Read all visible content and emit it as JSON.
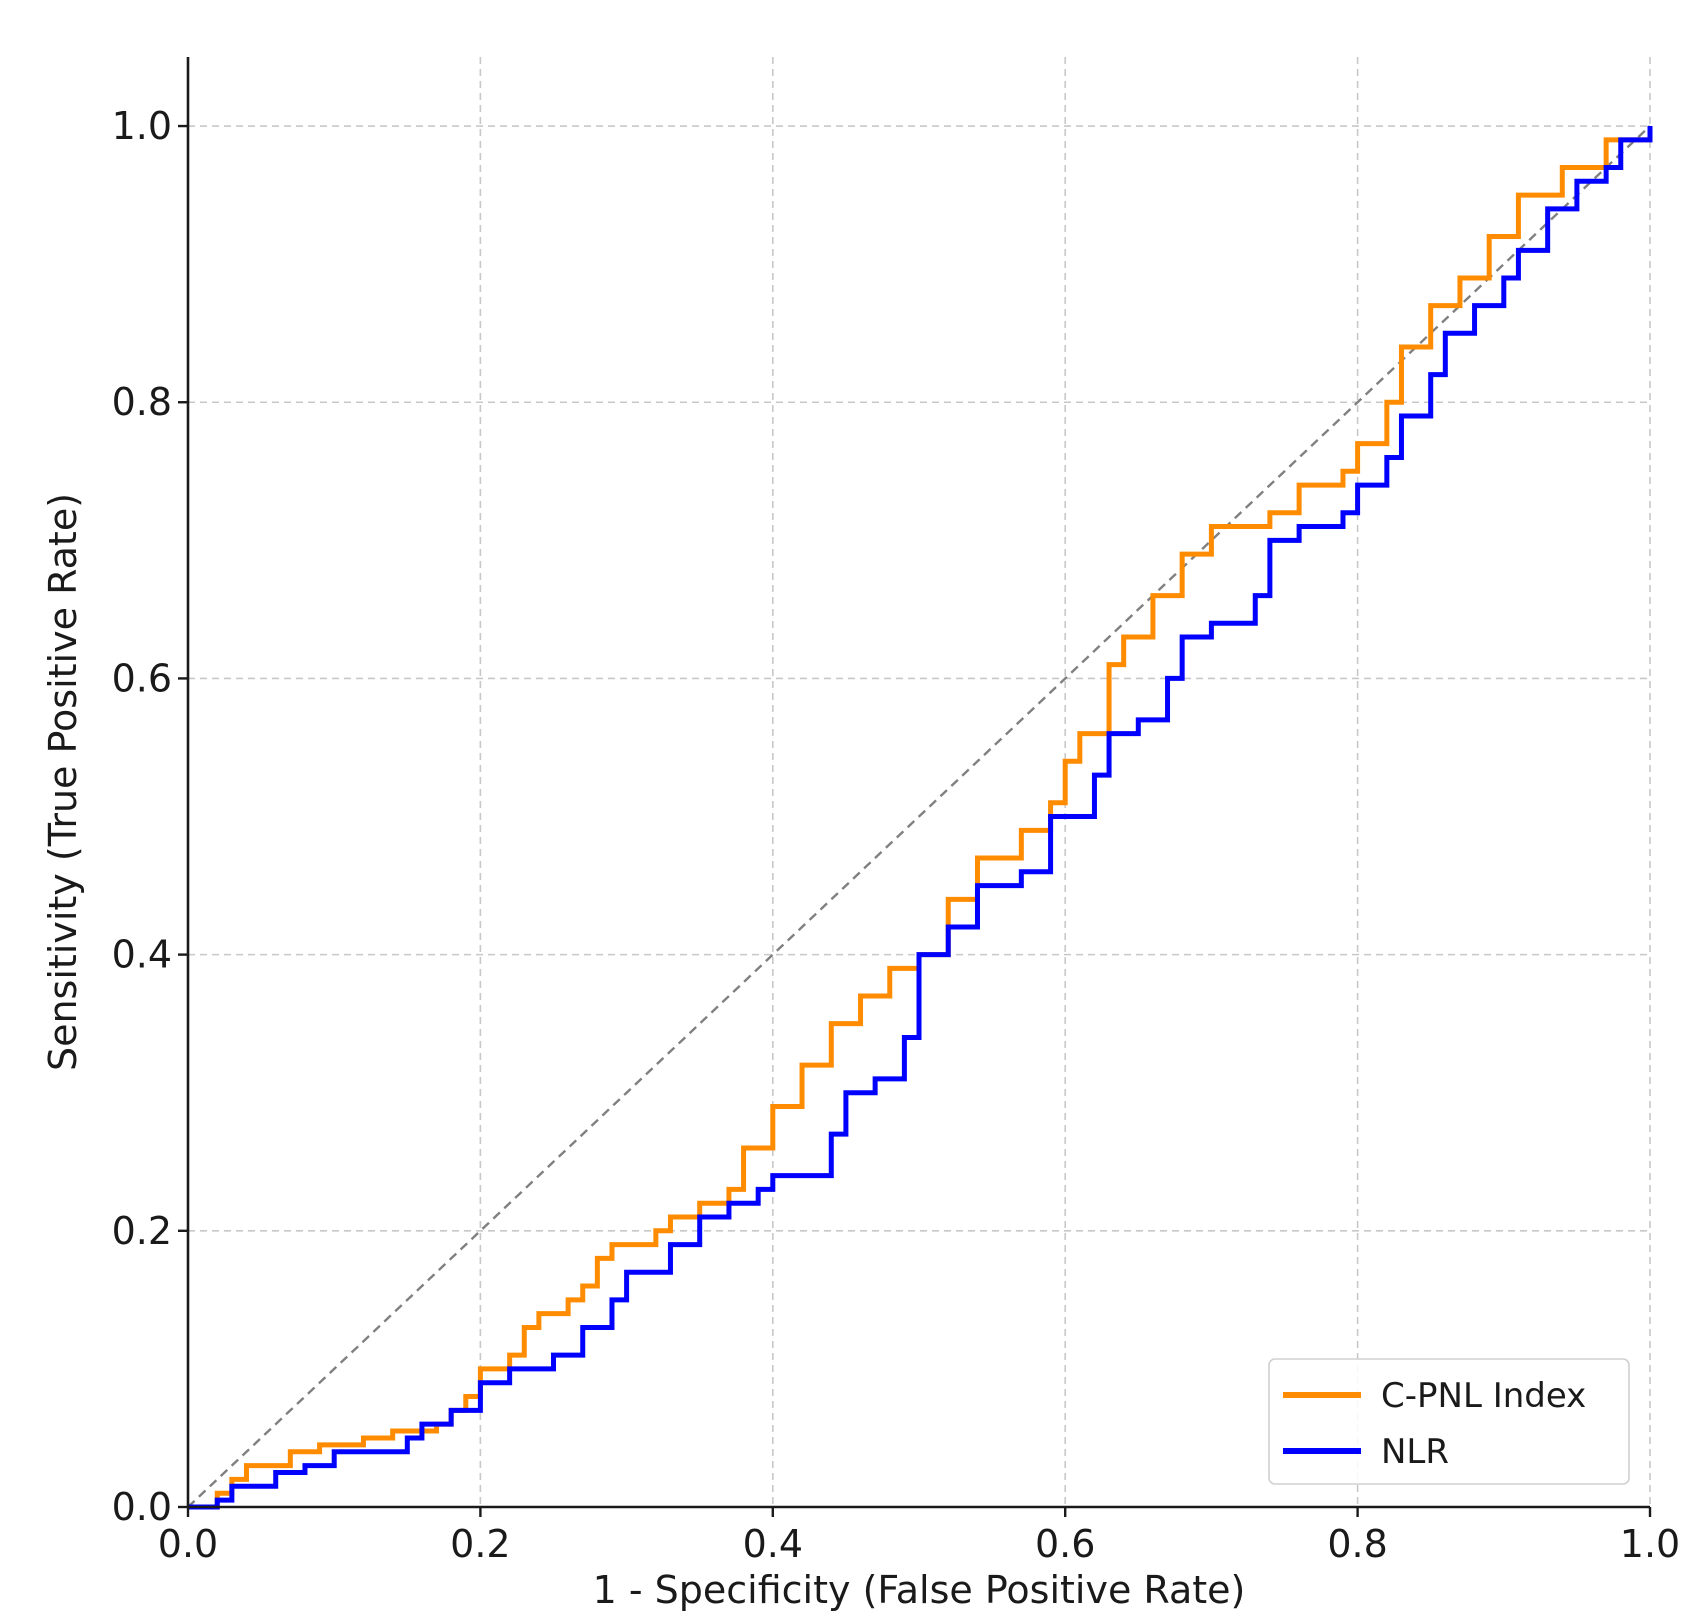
{
  "chart_data": {
    "type": "line",
    "title": "",
    "xlabel": "1 - Specificity (False Positive Rate)",
    "ylabel": "Sensitivity (True Positive Rate)",
    "xlim": [
      0.0,
      1.0
    ],
    "ylim": [
      0.0,
      1.05
    ],
    "x_ticks": [
      "0.0",
      "0.2",
      "0.4",
      "0.6",
      "0.8",
      "1.0"
    ],
    "y_ticks": [
      "0.0",
      "0.2",
      "0.4",
      "0.6",
      "0.8",
      "1.0"
    ],
    "grid": true,
    "legend_position": "lower-right",
    "reference_line": {
      "name": "chance diagonal",
      "x": [
        0,
        1
      ],
      "y": [
        0,
        1
      ],
      "color": "#808080",
      "style": "dashed"
    },
    "series": [
      {
        "name": "C-PNL Index",
        "color": "#ff8c00",
        "x": [
          0,
          0.02,
          0.03,
          0.04,
          0.07,
          0.09,
          0.12,
          0.14,
          0.17,
          0.18,
          0.19,
          0.2,
          0.22,
          0.23,
          0.24,
          0.26,
          0.27,
          0.28,
          0.29,
          0.32,
          0.33,
          0.35,
          0.37,
          0.38,
          0.4,
          0.42,
          0.44,
          0.46,
          0.48,
          0.5,
          0.52,
          0.54,
          0.57,
          0.59,
          0.6,
          0.61,
          0.63,
          0.64,
          0.66,
          0.68,
          0.7,
          0.74,
          0.76,
          0.79,
          0.8,
          0.82,
          0.83,
          0.85,
          0.87,
          0.89,
          0.91,
          0.94,
          0.97,
          1.0
        ],
        "y": [
          0,
          0.01,
          0.02,
          0.03,
          0.04,
          0.045,
          0.05,
          0.055,
          0.06,
          0.07,
          0.08,
          0.1,
          0.11,
          0.13,
          0.14,
          0.15,
          0.16,
          0.18,
          0.19,
          0.2,
          0.21,
          0.22,
          0.23,
          0.26,
          0.29,
          0.32,
          0.35,
          0.37,
          0.39,
          0.4,
          0.44,
          0.47,
          0.49,
          0.51,
          0.54,
          0.56,
          0.61,
          0.63,
          0.66,
          0.69,
          0.71,
          0.72,
          0.74,
          0.75,
          0.77,
          0.8,
          0.84,
          0.87,
          0.89,
          0.92,
          0.95,
          0.97,
          0.99,
          1.0
        ]
      },
      {
        "name": "NLR",
        "color": "#0000ff",
        "x": [
          0,
          0.02,
          0.03,
          0.06,
          0.08,
          0.1,
          0.14,
          0.15,
          0.16,
          0.18,
          0.2,
          0.22,
          0.25,
          0.27,
          0.29,
          0.3,
          0.33,
          0.35,
          0.37,
          0.39,
          0.4,
          0.43,
          0.44,
          0.45,
          0.47,
          0.49,
          0.5,
          0.52,
          0.54,
          0.57,
          0.59,
          0.6,
          0.62,
          0.63,
          0.65,
          0.67,
          0.68,
          0.7,
          0.73,
          0.74,
          0.76,
          0.79,
          0.8,
          0.82,
          0.83,
          0.85,
          0.86,
          0.88,
          0.9,
          0.91,
          0.93,
          0.95,
          0.97,
          0.98,
          1.0
        ],
        "y": [
          0,
          0.005,
          0.015,
          0.025,
          0.03,
          0.04,
          0.04,
          0.05,
          0.06,
          0.07,
          0.09,
          0.1,
          0.11,
          0.13,
          0.15,
          0.17,
          0.19,
          0.21,
          0.22,
          0.23,
          0.24,
          0.24,
          0.27,
          0.3,
          0.31,
          0.34,
          0.4,
          0.42,
          0.45,
          0.46,
          0.5,
          0.5,
          0.53,
          0.56,
          0.57,
          0.6,
          0.63,
          0.64,
          0.66,
          0.7,
          0.71,
          0.72,
          0.74,
          0.76,
          0.79,
          0.82,
          0.85,
          0.87,
          0.89,
          0.91,
          0.94,
          0.96,
          0.97,
          0.99,
          1.0
        ]
      }
    ]
  }
}
